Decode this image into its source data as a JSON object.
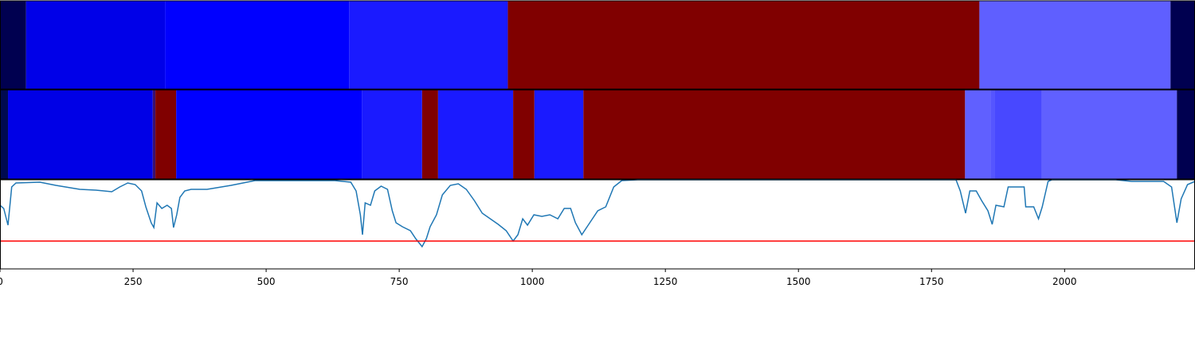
{
  "chart_data": [
    {
      "type": "segments",
      "xlim": [
        0,
        2245
      ],
      "segments": [
        {
          "start": 0,
          "end": 49,
          "color": "#000050"
        },
        {
          "start": 49,
          "end": 310,
          "color": "#0000e8"
        },
        {
          "start": 310,
          "end": 656,
          "color": "#0000ff"
        },
        {
          "start": 656,
          "end": 954,
          "color": "#1a1aff"
        },
        {
          "start": 954,
          "end": 1840,
          "color": "#800000"
        },
        {
          "start": 1840,
          "end": 2199,
          "color": "#5f5fff"
        },
        {
          "start": 2199,
          "end": 2245,
          "color": "#000050"
        }
      ]
    },
    {
      "type": "segments",
      "xlim": [
        0,
        2245
      ],
      "segments": [
        {
          "start": 0,
          "end": 15,
          "color": "#000a50"
        },
        {
          "start": 15,
          "end": 287,
          "color": "#0000e6"
        },
        {
          "start": 287,
          "end": 292,
          "color": "#3a1070"
        },
        {
          "start": 292,
          "end": 331,
          "color": "#800000"
        },
        {
          "start": 331,
          "end": 680,
          "color": "#0000ff"
        },
        {
          "start": 680,
          "end": 793,
          "color": "#1a1aff"
        },
        {
          "start": 793,
          "end": 823,
          "color": "#800000"
        },
        {
          "start": 823,
          "end": 964,
          "color": "#1a1aff"
        },
        {
          "start": 964,
          "end": 1004,
          "color": "#800000"
        },
        {
          "start": 1004,
          "end": 1096,
          "color": "#1a1aff"
        },
        {
          "start": 1096,
          "end": 1813,
          "color": "#800000"
        },
        {
          "start": 1813,
          "end": 1861,
          "color": "#6060ff"
        },
        {
          "start": 1861,
          "end": 1868,
          "color": "#5555ff"
        },
        {
          "start": 1868,
          "end": 1957,
          "color": "#4848ff"
        },
        {
          "start": 1957,
          "end": 2211,
          "color": "#6060ff"
        },
        {
          "start": 2211,
          "end": 2245,
          "color": "#000050"
        }
      ]
    },
    {
      "type": "line",
      "xlim": [
        0,
        2245
      ],
      "ylim": [
        0,
        112
      ],
      "xticks": [
        0,
        250,
        500,
        750,
        1000,
        1250,
        1500,
        1750,
        2000
      ],
      "threshold": 35,
      "threshold_color": "#ff0000",
      "series": [
        {
          "color": "#1f77b4",
          "x": [
            0,
            7,
            15,
            22,
            30,
            75,
            105,
            150,
            180,
            210,
            225,
            240,
            254,
            266,
            274,
            284,
            289,
            295,
            304,
            314,
            322,
            326,
            332,
            338,
            347,
            359,
            389,
            434,
            479,
            629,
            659,
            669,
            677,
            681,
            686,
            696,
            704,
            716,
            728,
            737,
            744,
            756,
            771,
            781,
            793,
            801,
            808,
            820,
            831,
            846,
            861,
            876,
            891,
            906,
            921,
            936,
            951,
            964,
            973,
            982,
            991,
            1003,
            1018,
            1033,
            1048,
            1060,
            1072,
            1081,
            1093,
            1108,
            1123,
            1138,
            1153,
            1168,
            1198,
            1796,
            1804,
            1814,
            1822,
            1834,
            1844,
            1856,
            1864,
            1871,
            1886,
            1894,
            1924,
            1927,
            1942,
            1951,
            1958,
            1969,
            1976,
            2096,
            2126,
            2186,
            2201,
            2211,
            2219,
            2231,
            2245
          ],
          "values": [
            80,
            76,
            55,
            103,
            108,
            109,
            105,
            100,
            99,
            97,
            103,
            108,
            106,
            98,
            78,
            58,
            52,
            83,
            76,
            80,
            76,
            52,
            68,
            90,
            98,
            100,
            100,
            105,
            111,
            111,
            109,
            98,
            68,
            43,
            83,
            80,
            98,
            104,
            100,
            73,
            58,
            53,
            48,
            38,
            28,
            38,
            53,
            68,
            93,
            105,
            107,
            100,
            86,
            70,
            63,
            56,
            48,
            35,
            43,
            63,
            55,
            68,
            66,
            68,
            63,
            76,
            76,
            58,
            43,
            58,
            73,
            78,
            103,
            111,
            112,
            112,
            98,
            70,
            98,
            98,
            86,
            73,
            56,
            80,
            78,
            103,
            103,
            78,
            78,
            63,
            78,
            110,
            112,
            112,
            110,
            110,
            103,
            58,
            88,
            106,
            110
          ]
        }
      ]
    }
  ]
}
